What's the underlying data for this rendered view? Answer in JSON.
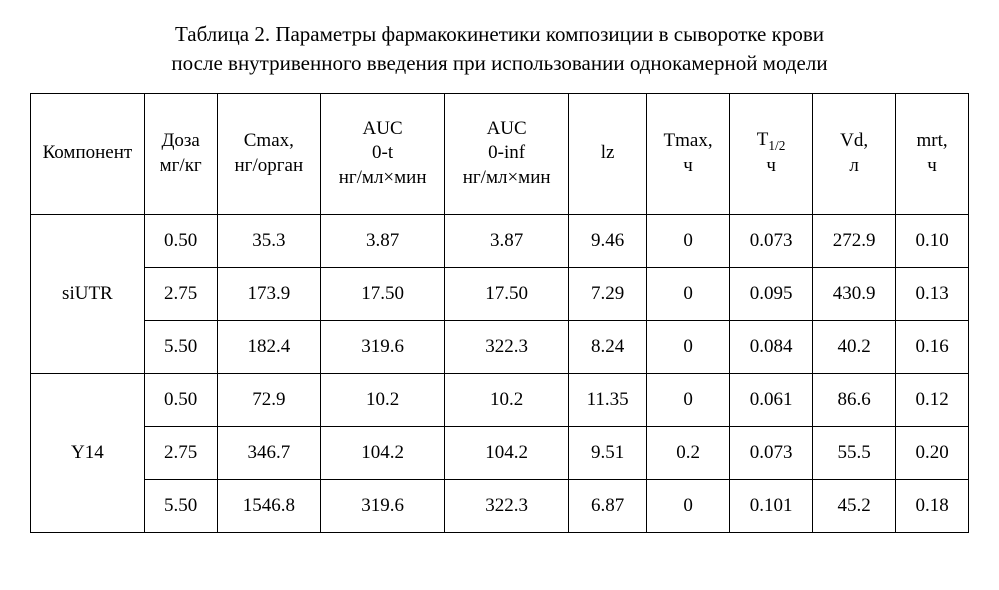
{
  "title_line1": "Таблица 2. Параметры фармакокинетики композиции в сыворотке крови",
  "title_line2": "после внутривенного введения при использовании однокамерной модели",
  "headers": {
    "component": "Компонент",
    "dose_l1": "Доза",
    "dose_l2": "мг/кг",
    "cmax_l1": "Cmax,",
    "cmax_l2": "нг/орган",
    "auc0t_l1": "AUC",
    "auc0t_l2": "0-t",
    "auc0t_l3": "нг/мл×мин",
    "auc0inf_l1": "AUC",
    "auc0inf_l2": "0-inf",
    "auc0inf_l3": "нг/мл×мин",
    "lz": "lz",
    "tmax_l1": "Tmax,",
    "tmax_l2": "ч",
    "t12_l2": "ч",
    "vd_l1": "Vd,",
    "vd_l2": "л",
    "mrt_l1": "mrt,",
    "mrt_l2": "ч"
  },
  "groups": [
    {
      "name": "siUTR",
      "rows": [
        {
          "dose": "0.50",
          "cmax": "35.3",
          "auc0t": "3.87",
          "auc0inf": "3.87",
          "lz": "9.46",
          "tmax": "0",
          "t12": "0.073",
          "vd": "272.9",
          "mrt": "0.10"
        },
        {
          "dose": "2.75",
          "cmax": "173.9",
          "auc0t": "17.50",
          "auc0inf": "17.50",
          "lz": "7.29",
          "tmax": "0",
          "t12": "0.095",
          "vd": "430.9",
          "mrt": "0.13"
        },
        {
          "dose": "5.50",
          "cmax": "182.4",
          "auc0t": "319.6",
          "auc0inf": "322.3",
          "lz": "8.24",
          "tmax": "0",
          "t12": "0.084",
          "vd": "40.2",
          "mrt": "0.16"
        }
      ]
    },
    {
      "name": "Y14",
      "rows": [
        {
          "dose": "0.50",
          "cmax": "72.9",
          "auc0t": "10.2",
          "auc0inf": "10.2",
          "lz": "11.35",
          "tmax": "0",
          "t12": "0.061",
          "vd": "86.6",
          "mrt": "0.12"
        },
        {
          "dose": "2.75",
          "cmax": "346.7",
          "auc0t": "104.2",
          "auc0inf": "104.2",
          "lz": "9.51",
          "tmax": "0.2",
          "t12": "0.073",
          "vd": "55.5",
          "mrt": "0.20"
        },
        {
          "dose": "5.50",
          "cmax": "1546.8",
          "auc0t": "319.6",
          "auc0inf": "322.3",
          "lz": "6.87",
          "tmax": "0",
          "t12": "0.101",
          "vd": "45.2",
          "mrt": "0.18"
        }
      ]
    }
  ]
}
